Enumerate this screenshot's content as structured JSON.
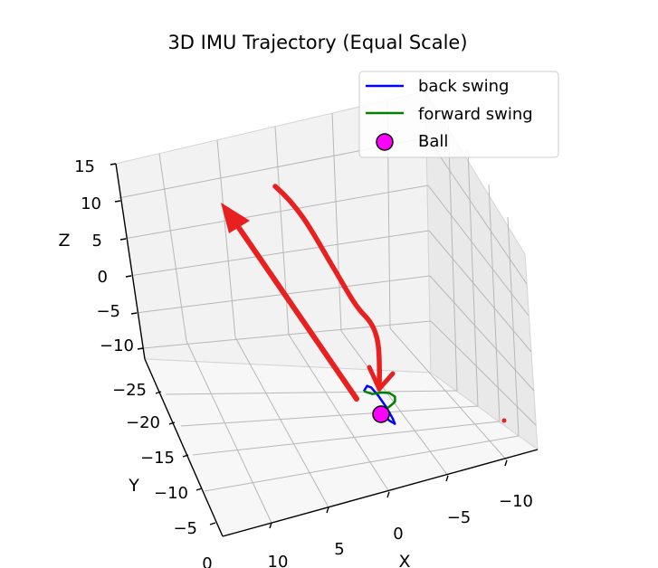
{
  "chart_data": {
    "type": "line",
    "title": "3D IMU Trajectory (Equal Scale)",
    "xlabel": "X",
    "ylabel": "Y",
    "zlabel": "Z",
    "grid": true,
    "legend_position": "top-right",
    "x_ticks": [
      "10",
      "5",
      "0",
      "−5",
      "−10"
    ],
    "y_ticks": [
      "0",
      "−5",
      "−10",
      "−15",
      "−20",
      "−25"
    ],
    "z_ticks": [
      "15",
      "10",
      "5",
      "0",
      "−5",
      "−10"
    ],
    "series": [
      {
        "name": "back swing",
        "color": "#0000ff",
        "kind": "line",
        "points": [
          {
            "x": 0.0,
            "y": -7.0,
            "z": -10.0
          },
          {
            "x": 0.0,
            "y": -9.0,
            "z": -9.6
          },
          {
            "x": 0.5,
            "y": -11.5,
            "z": -8.0
          },
          {
            "x": 1.5,
            "y": -14.0,
            "z": -5.0
          },
          {
            "x": 2.8,
            "y": -16.5,
            "z": -1.0
          },
          {
            "x": 4.2,
            "y": -19.0,
            "z": 3.0
          },
          {
            "x": 5.6,
            "y": -21.5,
            "z": 6.7
          },
          {
            "x": 6.8,
            "y": -24.0,
            "z": 9.3
          },
          {
            "x": 7.8,
            "y": -26.0,
            "z": 10.5
          }
        ]
      },
      {
        "name": "forward swing",
        "color": "#008000",
        "kind": "line",
        "points": [
          {
            "x": 7.8,
            "y": -26.0,
            "z": 10.5
          },
          {
            "x": 6.6,
            "y": -24.5,
            "z": 8.4
          },
          {
            "x": 5.0,
            "y": -22.0,
            "z": 6.0
          },
          {
            "x": 3.4,
            "y": -19.3,
            "z": 3.2
          },
          {
            "x": 2.0,
            "y": -16.5,
            "z": 0.0
          },
          {
            "x": 1.0,
            "y": -13.5,
            "z": -3.3
          },
          {
            "x": 0.3,
            "y": -10.5,
            "z": -6.2
          },
          {
            "x": 0.0,
            "y": -8.5,
            "z": -8.2
          },
          {
            "x": 0.0,
            "y": -7.0,
            "z": -10.0
          }
        ]
      },
      {
        "name": "Ball",
        "color": "#ff00ff",
        "kind": "marker",
        "points": [
          {
            "x": 0.0,
            "y": -7.0,
            "z": -10.0
          }
        ]
      }
    ],
    "annotations": [
      {
        "kind": "arrow",
        "color": "#e82020",
        "description": "straight red arrow along the back swing pointing up-left"
      },
      {
        "kind": "arrow",
        "color": "#e82020",
        "description": "curved red arrow along the forward swing pointing down to the ball"
      },
      {
        "kind": "point",
        "color": "#e82020",
        "description": "small red dot on the right side wall"
      }
    ]
  }
}
